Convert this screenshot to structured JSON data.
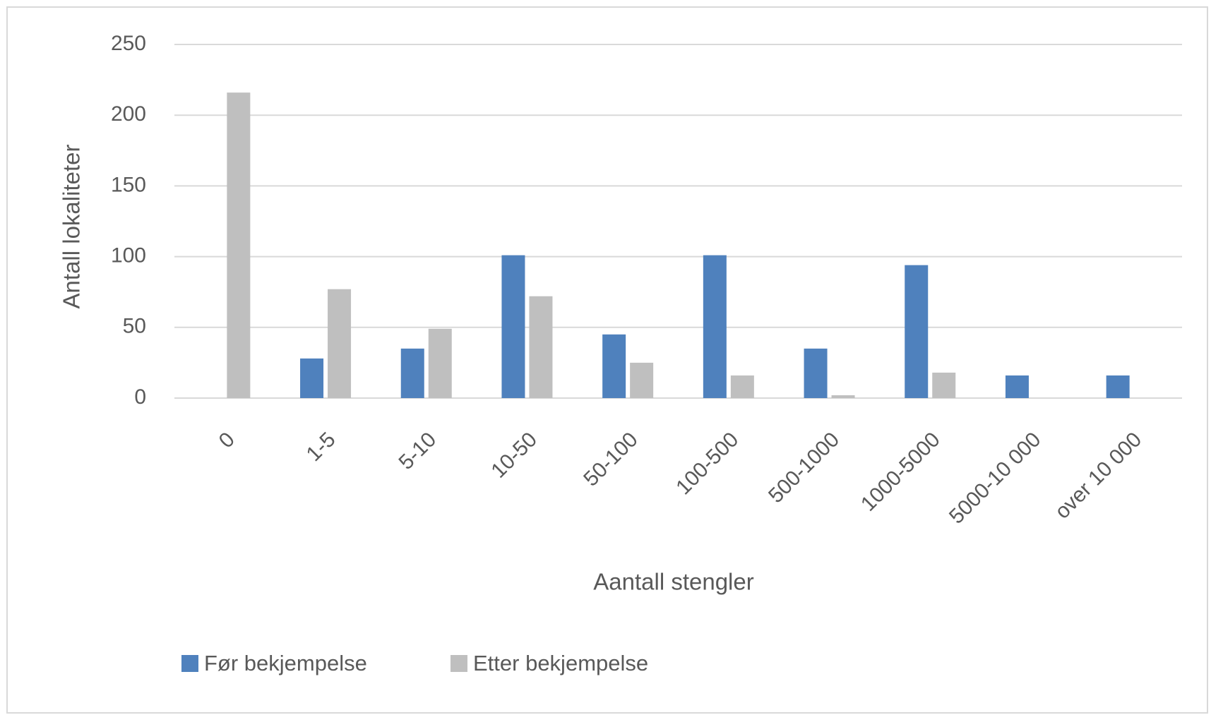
{
  "chart_data": {
    "type": "bar",
    "categories": [
      "0",
      "1-5",
      "5-10",
      "10-50",
      "50-100",
      "100-500",
      "500-1000",
      "1000-5000",
      "5000-10 000",
      "over 10 000"
    ],
    "series": [
      {
        "name": "Før bekjempelse",
        "color": "#4f81bd",
        "values": [
          0,
          28,
          35,
          101,
          45,
          101,
          35,
          94,
          16,
          16
        ]
      },
      {
        "name": "Etter bekjempelse",
        "color": "#bfbfbf",
        "values": [
          216,
          77,
          49,
          72,
          25,
          16,
          2,
          18,
          0,
          0
        ]
      }
    ],
    "x_label": "Aantall stengler",
    "y_label": "Antall lokaliteter",
    "ylim": [
      0,
      250
    ],
    "yticks": [
      0,
      50,
      100,
      150,
      200,
      250
    ],
    "grid": true,
    "legend": "bottom"
  }
}
